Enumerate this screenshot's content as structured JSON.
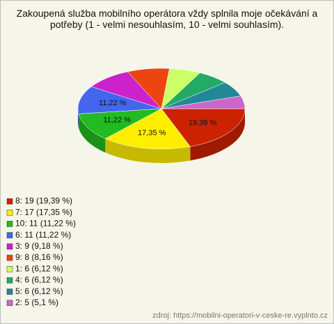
{
  "chart_data": {
    "type": "pie3d",
    "title": "Zakoupená služba mobilního operátora vždy splnila moje očekávání a potřeby (1 - velmi nesouhlasím, 10 - velmi souhlasím).",
    "categories": [
      "8",
      "7",
      "10",
      "6",
      "3",
      "9",
      "1",
      "4",
      "5",
      "2"
    ],
    "values": [
      19,
      17,
      11,
      11,
      9,
      8,
      6,
      6,
      6,
      5
    ],
    "value_labels": [
      "19,39 %",
      "17,35 %",
      "11,22 %",
      "11,22 %",
      null,
      null,
      null,
      null,
      null,
      null
    ],
    "legend_labels": [
      "8: 19 (19,39 %)",
      "7: 17 (17,35 %)",
      "10: 11 (11,22 %)",
      "6: 11 (11,22 %)",
      "3: 9 (9,18 %)",
      "9: 8 (8,16 %)",
      "1: 6 (6,12 %)",
      "4: 6 (6,12 %)",
      "5: 6 (6,12 %)",
      "2: 5 (5,1 %)"
    ],
    "colors": [
      "#cc2200",
      "#ffee00",
      "#22bb22",
      "#4466ee",
      "#cc22cc",
      "#ee4411",
      "#ccff66",
      "#22aa66",
      "#228899",
      "#cc66cc"
    ],
    "legend": "bottom-left",
    "source": "zdroj: https://mobilni-operatori-v-ceske-re.vyplnto.cz"
  }
}
